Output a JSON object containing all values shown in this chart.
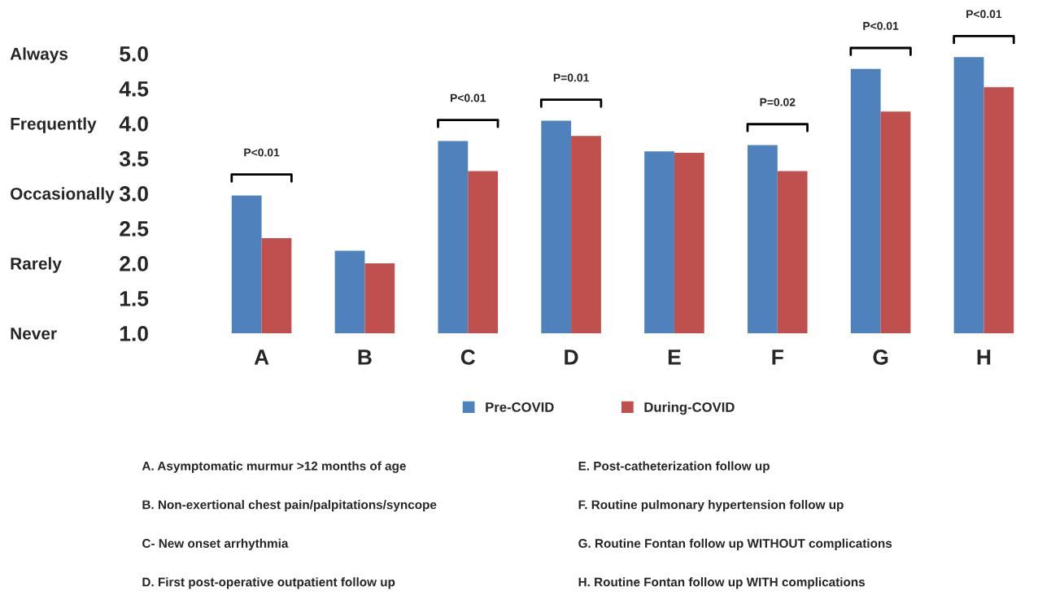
{
  "chart_data": {
    "type": "bar",
    "categories": [
      "A",
      "B",
      "C",
      "D",
      "E",
      "F",
      "G",
      "H"
    ],
    "series": [
      {
        "name": "Pre-COVID",
        "color": "#4f81bd",
        "values": [
          2.97,
          2.18,
          3.75,
          4.04,
          3.6,
          3.69,
          4.78,
          4.95
        ]
      },
      {
        "name": "During-COVID",
        "color": "#c0504d",
        "values": [
          2.36,
          2.0,
          3.32,
          3.82,
          3.58,
          3.32,
          4.17,
          4.52
        ]
      }
    ],
    "ylim": [
      1.0,
      5.0
    ],
    "yticks": [
      {
        "value": 1.0,
        "label": "1.0"
      },
      {
        "value": 1.5,
        "label": "1.5"
      },
      {
        "value": 2.0,
        "label": "2.0"
      },
      {
        "value": 2.5,
        "label": "2.5"
      },
      {
        "value": 3.0,
        "label": "3.0"
      },
      {
        "value": 3.5,
        "label": "3.5"
      },
      {
        "value": 4.0,
        "label": "4.0"
      },
      {
        "value": 4.5,
        "label": "4.5"
      },
      {
        "value": 5.0,
        "label": "5.0"
      }
    ],
    "y2_categories": [
      "Always",
      null,
      "Frequently",
      null,
      "Occasionally",
      null,
      "Rarely",
      null,
      "Never"
    ],
    "legend": "bottom",
    "grid": false,
    "annotations": [
      "P<0.01",
      "P<0.01",
      "P=0.01",
      "P=0.02",
      "P<0.01",
      "P<0.01",
      "A. Asymptomatic murmur >12 months of age",
      "B. Non-exertional chest pain/palpitations/syncope",
      "C- New onset arrhythmia",
      "D. First post-operative outpatient follow up",
      "E. Post-catheterization follow up",
      "F. Routine pulmonary hypertension follow up",
      "G. Routine Fontan follow up WITHOUT complications",
      "H. Routine Fontan follow up WITH complications"
    ]
  }
}
